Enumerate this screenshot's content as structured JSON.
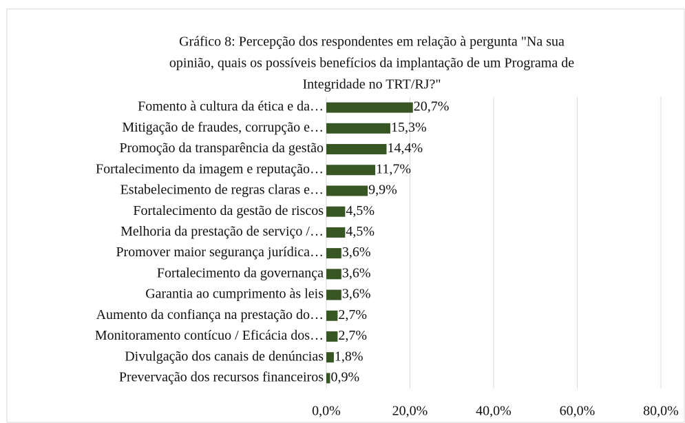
{
  "chart_data": {
    "type": "bar",
    "orientation": "horizontal",
    "title": [
      "Gráfico 8: Percepção dos respondentes em relação à pergunta \"Na sua",
      "opinião, quais os possíveis benefícios da implantação de um Programa de",
      "Integridade no TRT/RJ?\""
    ],
    "categories": [
      "Fomento à cultura da ética e da…",
      "Mitigação de fraudes, corrupção e…",
      "Promoção da transparência da gestão",
      "Fortalecimento da imagem e reputação…",
      "Estabelecimento de regras claras e…",
      "Fortalecimento da gestão de riscos",
      "Melhoria da prestação de serviço /…",
      "Promover maior segurança jurídica…",
      "Fortalecimento da governança",
      "Garantia ao cumprimento às leis",
      "Aumento da confiança na prestação do…",
      "Monitoramento contícuo / Eficácia dos…",
      "Divulgação dos canais de denúncias",
      "Prevervação dos recursos financeiros"
    ],
    "values": [
      20.7,
      15.3,
      14.4,
      11.7,
      9.9,
      4.5,
      4.5,
      3.6,
      3.6,
      3.6,
      2.7,
      2.7,
      1.8,
      0.9
    ],
    "value_labels": [
      "20,7%",
      "15,3%",
      "14,4%",
      "11,7%",
      "9,9%",
      "4,5%",
      "4,5%",
      "3,6%",
      "3,6%",
      "3,6%",
      "2,7%",
      "2,7%",
      "1,8%",
      "0,9%"
    ],
    "color": "#375623",
    "xlim": [
      0,
      80
    ],
    "xticks": [
      {
        "value": 0,
        "label": "0,0%"
      },
      {
        "value": 20,
        "label": "20,0%"
      },
      {
        "value": 40,
        "label": "40,0%"
      },
      {
        "value": 60,
        "label": "60,0%"
      },
      {
        "value": 80,
        "label": "80,0%"
      }
    ],
    "grid": true
  }
}
